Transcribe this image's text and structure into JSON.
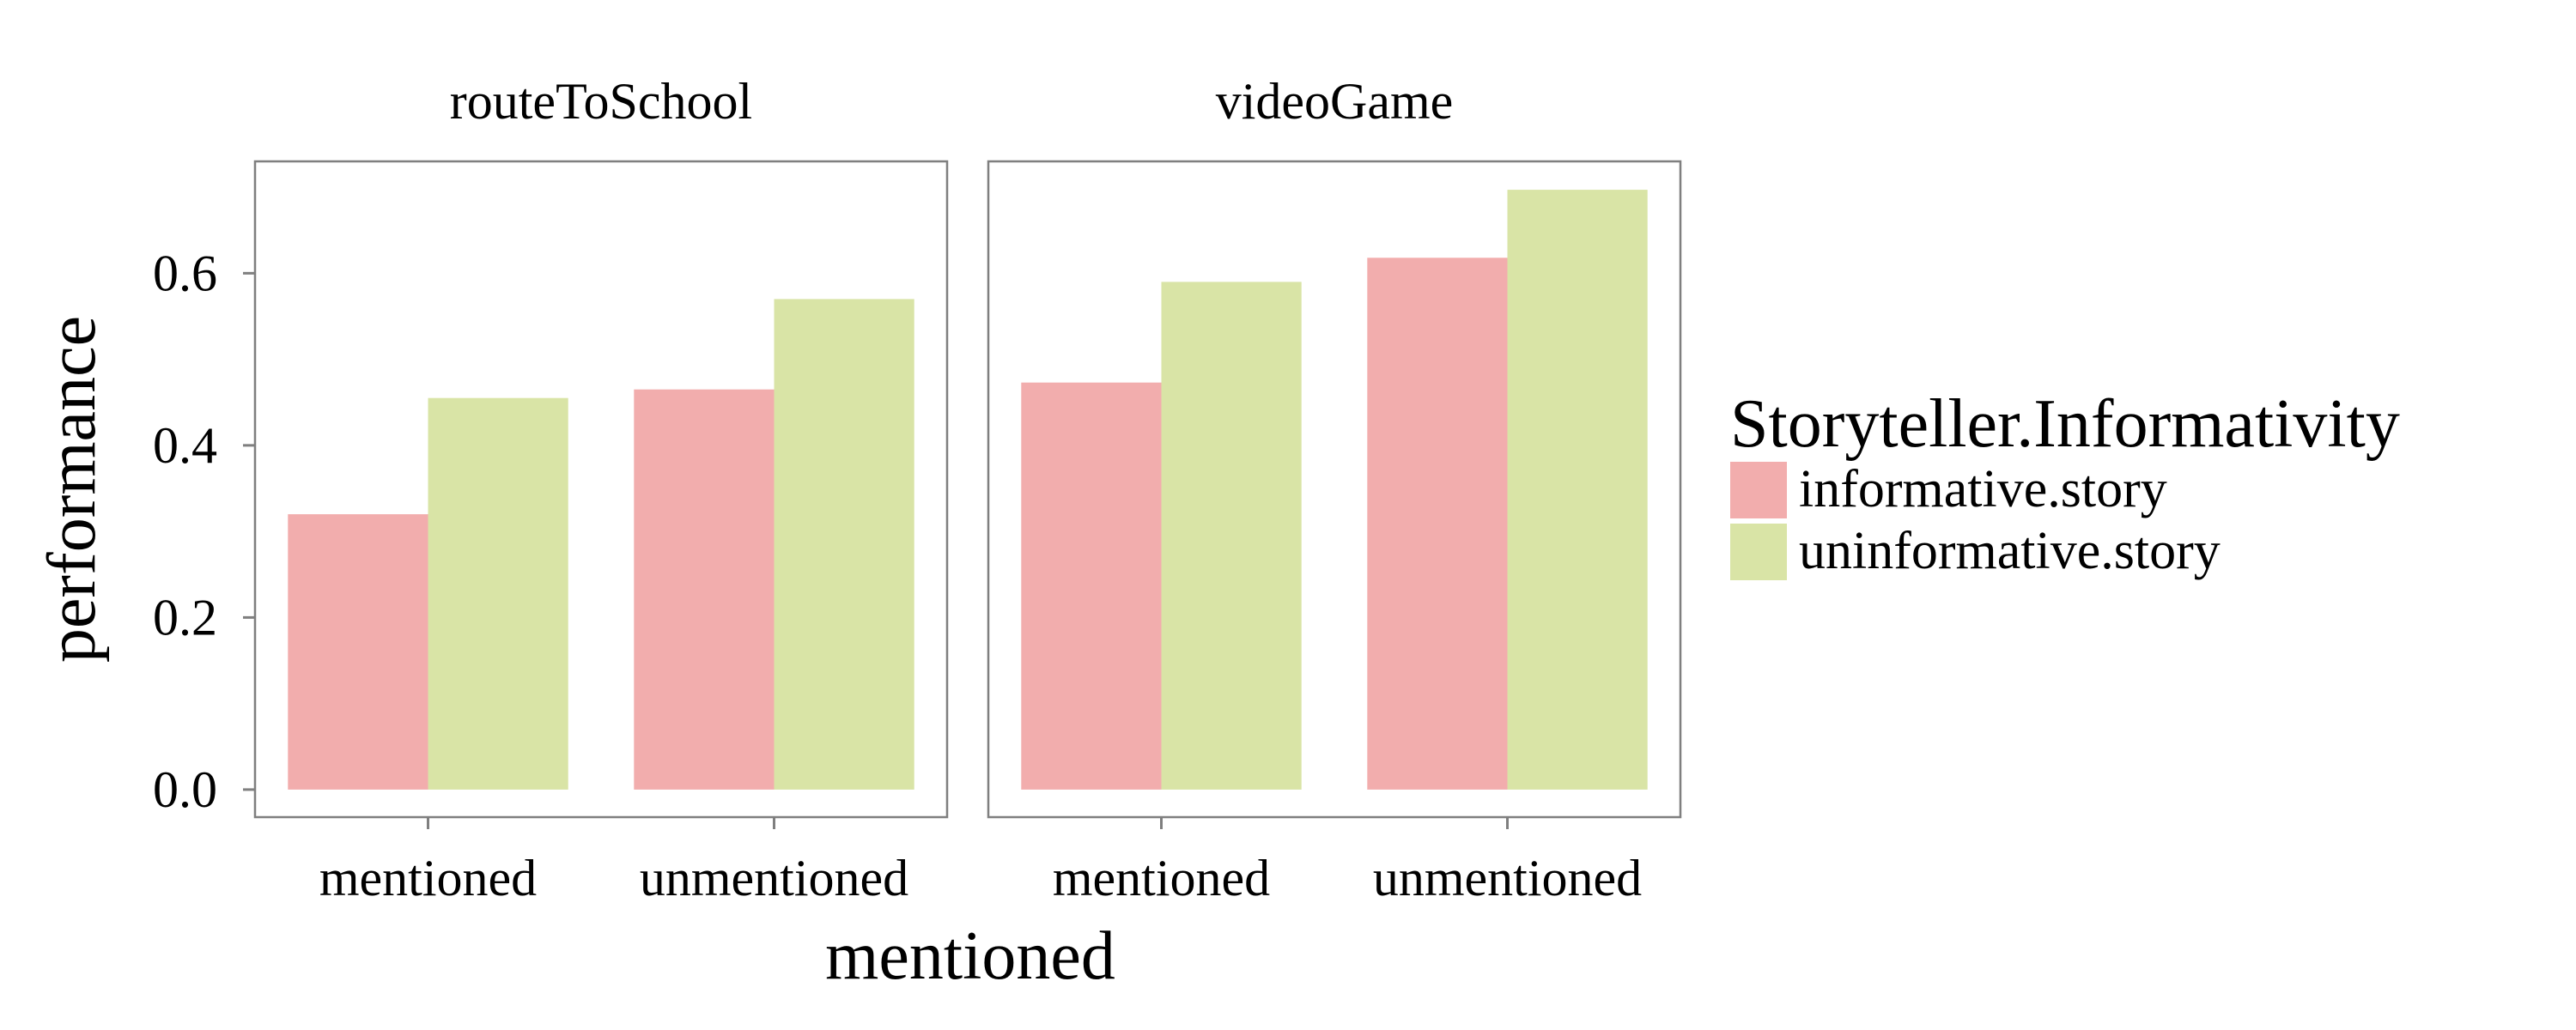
{
  "chart_data": {
    "type": "bar",
    "xlabel": "mentioned",
    "ylabel": "performance",
    "ylim": [
      -0.032,
      0.73
    ],
    "y_ticks": [
      0.0,
      0.2,
      0.4,
      0.6
    ],
    "y_tick_labels": [
      "0.0",
      "0.2",
      "0.4",
      "0.6"
    ],
    "categories": [
      "mentioned",
      "unmentioned"
    ],
    "grid": false,
    "legend_position": "right",
    "legend": {
      "title": "Storyteller.Informativity",
      "entries": [
        "informative.story",
        "uninformative.story"
      ]
    },
    "series_colors": [
      "#f2adad",
      "#d9e4a6"
    ],
    "facets": [
      {
        "title": "routeToSchool",
        "series": [
          {
            "name": "informative.story",
            "values": [
              0.32,
              0.465
            ]
          },
          {
            "name": "uninformative.story",
            "values": [
              0.455,
              0.57
            ]
          }
        ]
      },
      {
        "title": "videoGame",
        "series": [
          {
            "name": "informative.story",
            "values": [
              0.473,
              0.618
            ]
          },
          {
            "name": "uninformative.story",
            "values": [
              0.59,
              0.697
            ]
          }
        ]
      }
    ]
  }
}
